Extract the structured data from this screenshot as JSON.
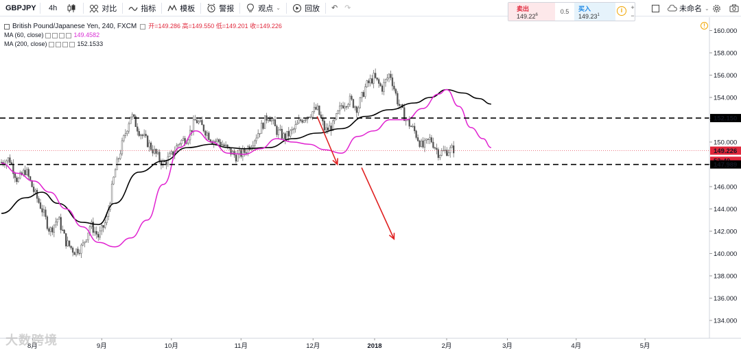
{
  "toolbar": {
    "symbol": "GBPJPY",
    "interval": "4h",
    "items": [
      {
        "label": "对比",
        "icon": "compare-icon"
      },
      {
        "label": "指标",
        "icon": "indicators-icon"
      },
      {
        "label": "模板",
        "icon": "templates-icon"
      },
      {
        "label": "警报",
        "icon": "alert-clock-icon"
      },
      {
        "label": "观点",
        "icon": "ideas-bulb-icon"
      },
      {
        "label": "回放",
        "icon": "replay-icon"
      }
    ],
    "right": {
      "layout_name": "未命名"
    }
  },
  "trade": {
    "sell_label": "卖出",
    "sell_value": "149.22",
    "sell_sup": "6",
    "spread": "0.5",
    "buy_label": "买入",
    "buy_value": "149.23",
    "buy_sup": "1"
  },
  "legend": {
    "title": "British Pound/Japanese Yen, 240, FXCM",
    "ohlc": "开=149.286 高=149.550 低=149.201 收=149.226",
    "ma60_label": "MA (60, close)",
    "ma60_value": "149.4582",
    "ma200_label": "MA (200, close)",
    "ma200_value": "152.1533"
  },
  "watermark": "大数跨境",
  "colors": {
    "up": "#ffffff",
    "down": "#555555",
    "ma60": "#e020d0",
    "ma200": "#000000",
    "arrow": "#e02020",
    "level": "#000000",
    "price_tag": "#e0273b"
  },
  "chart_data": {
    "type": "candlestick",
    "y_ticks": [
      "160.000",
      "158.000",
      "156.000",
      "154.000",
      "152.000",
      "150.000",
      "148.000",
      "146.000",
      "144.000",
      "142.000",
      "140.000",
      "138.000",
      "136.000",
      "134.000"
    ],
    "y_range": [
      132.4,
      161.2
    ],
    "x_labels": [
      "8月",
      "9月",
      "10月",
      "11月",
      "12月",
      "2018",
      "2月",
      "3月",
      "4月",
      "5月"
    ],
    "price_labels": [
      {
        "text": "152.150",
        "value": 152.15,
        "style": "level"
      },
      {
        "text": "149.226",
        "value": 149.226,
        "style": "last"
      },
      {
        "text": "52:40",
        "value": 148.35,
        "style": "countdown"
      },
      {
        "text": "147.989",
        "value": 147.989,
        "style": "level"
      }
    ],
    "levels": [
      152.15,
      147.989
    ],
    "ma60": [
      [
        0,
        148.1
      ],
      [
        0.04,
        147.2
      ],
      [
        0.08,
        146.5
      ],
      [
        0.12,
        145.5
      ],
      [
        0.16,
        144.0
      ],
      [
        0.2,
        142.4
      ],
      [
        0.24,
        141.0
      ],
      [
        0.28,
        140.6
      ],
      [
        0.32,
        141.4
      ],
      [
        0.36,
        143.0
      ],
      [
        0.4,
        146.2
      ],
      [
        0.44,
        149.5
      ],
      [
        0.48,
        151.0
      ],
      [
        0.52,
        150.0
      ],
      [
        0.56,
        149.0
      ],
      [
        0.6,
        148.9
      ],
      [
        0.64,
        149.4
      ],
      [
        0.68,
        150.3
      ],
      [
        0.72,
        150.0
      ],
      [
        0.76,
        149.8
      ],
      [
        0.8,
        149.3
      ],
      [
        0.84,
        149.0
      ],
      [
        0.88,
        150.5
      ],
      [
        0.92,
        151.0
      ],
      [
        0.96,
        152.0
      ],
      [
        1.0,
        152.0
      ],
      [
        1.04,
        153.0
      ],
      [
        1.08,
        154.3
      ],
      [
        1.1,
        154.7
      ],
      [
        1.13,
        153.2
      ],
      [
        1.16,
        151.3
      ],
      [
        1.19,
        150.3
      ],
      [
        1.21,
        149.5
      ]
    ],
    "ma200": [
      [
        0,
        143.6
      ],
      [
        0.06,
        145.0
      ],
      [
        0.1,
        145.5
      ],
      [
        0.14,
        144.5
      ],
      [
        0.2,
        142.8
      ],
      [
        0.24,
        142.6
      ],
      [
        0.28,
        144.5
      ],
      [
        0.34,
        147.3
      ],
      [
        0.4,
        148.3
      ],
      [
        0.46,
        149.5
      ],
      [
        0.52,
        149.8
      ],
      [
        0.56,
        149.5
      ],
      [
        0.6,
        149.4
      ],
      [
        0.66,
        149.5
      ],
      [
        0.72,
        150.3
      ],
      [
        0.78,
        150.8
      ],
      [
        0.84,
        151.2
      ],
      [
        0.9,
        152.3
      ],
      [
        0.96,
        152.9
      ],
      [
        1.02,
        153.5
      ],
      [
        1.06,
        154.0
      ],
      [
        1.1,
        154.7
      ],
      [
        1.14,
        154.4
      ],
      [
        1.18,
        153.9
      ],
      [
        1.21,
        153.4
      ]
    ],
    "price_path": [
      [
        0,
        148.2
      ],
      [
        0.02,
        148.5
      ],
      [
        0.04,
        146.5
      ],
      [
        0.06,
        147.5
      ],
      [
        0.08,
        145.6
      ],
      [
        0.1,
        144.0
      ],
      [
        0.12,
        142.0
      ],
      [
        0.14,
        143.2
      ],
      [
        0.16,
        141.0
      ],
      [
        0.18,
        140.2
      ],
      [
        0.2,
        140.6
      ],
      [
        0.22,
        142.6
      ],
      [
        0.24,
        141.5
      ],
      [
        0.26,
        143.0
      ],
      [
        0.28,
        147.3
      ],
      [
        0.3,
        150.0
      ],
      [
        0.32,
        152.5
      ],
      [
        0.34,
        151.0
      ],
      [
        0.36,
        150.0
      ],
      [
        0.38,
        149.0
      ],
      [
        0.4,
        148.0
      ],
      [
        0.42,
        148.8
      ],
      [
        0.44,
        150.0
      ],
      [
        0.46,
        150.4
      ],
      [
        0.48,
        152.0
      ],
      [
        0.5,
        151.2
      ],
      [
        0.52,
        150.2
      ],
      [
        0.54,
        150.0
      ],
      [
        0.56,
        149.3
      ],
      [
        0.58,
        148.7
      ],
      [
        0.6,
        149.1
      ],
      [
        0.62,
        150.0
      ],
      [
        0.64,
        151.2
      ],
      [
        0.66,
        152.5
      ],
      [
        0.68,
        151.0
      ],
      [
        0.7,
        150.4
      ],
      [
        0.72,
        151.0
      ],
      [
        0.74,
        152.0
      ],
      [
        0.76,
        152.5
      ],
      [
        0.78,
        153.0
      ],
      [
        0.8,
        151.0
      ],
      [
        0.82,
        151.5
      ],
      [
        0.84,
        153.3
      ],
      [
        0.86,
        153.8
      ],
      [
        0.88,
        153.0
      ],
      [
        0.9,
        155.0
      ],
      [
        0.92,
        155.8
      ],
      [
        0.94,
        154.8
      ],
      [
        0.96,
        156.2
      ],
      [
        0.98,
        153.5
      ],
      [
        1.0,
        152.0
      ],
      [
        1.02,
        151.0
      ],
      [
        1.04,
        149.5
      ],
      [
        1.06,
        150.3
      ],
      [
        1.08,
        149.0
      ],
      [
        1.1,
        149.2
      ],
      [
        1.12,
        149.4
      ]
    ],
    "arrows": [
      [
        [
          0.78,
          152.3
        ],
        [
          0.83,
          148.0
        ]
      ],
      [
        [
          0.89,
          147.7
        ],
        [
          0.97,
          141.3
        ]
      ]
    ]
  }
}
